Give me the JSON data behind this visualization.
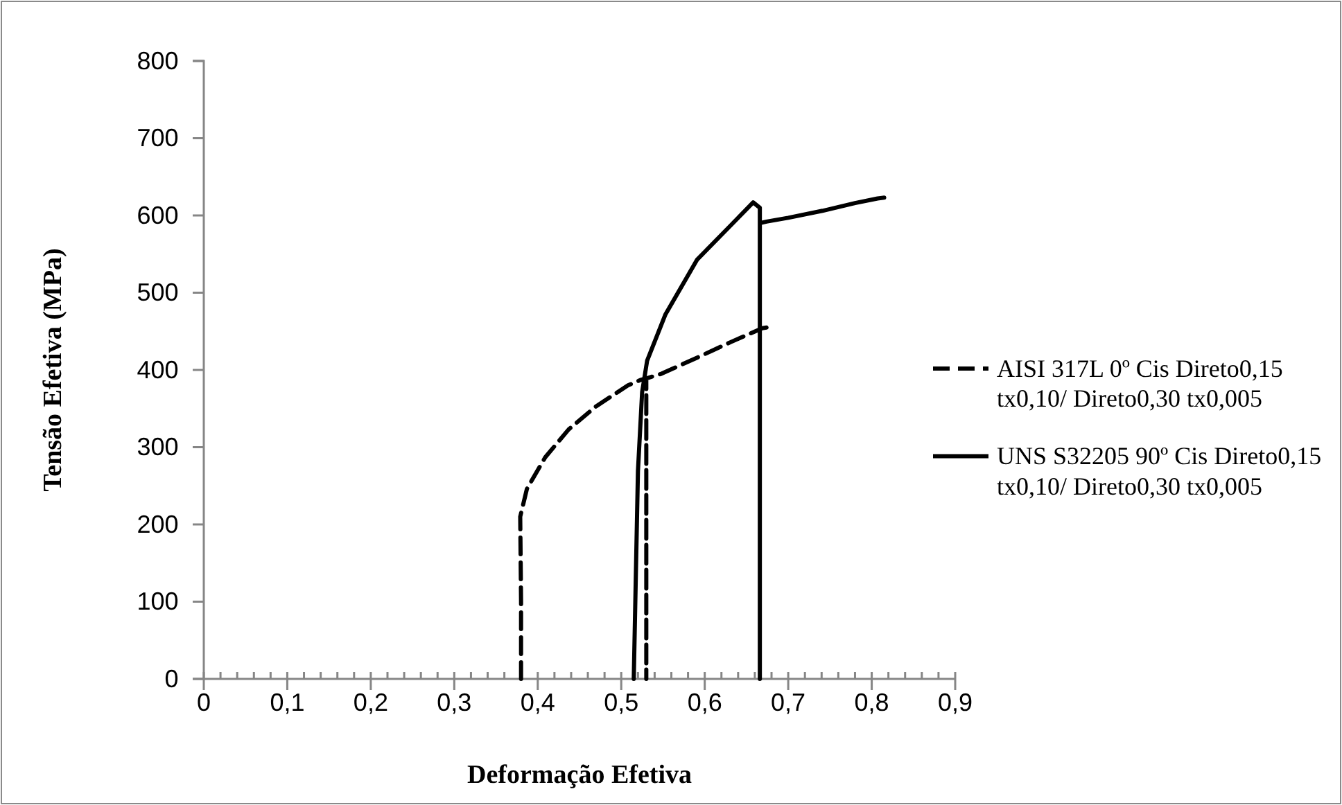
{
  "chart_data": {
    "type": "line",
    "xlabel": "Deformação Efetiva",
    "ylabel": "Tensão Efetiva (MPa)",
    "xlim": [
      0,
      0.9
    ],
    "ylim": [
      0,
      800
    ],
    "xticks": [
      {
        "value": 0,
        "label": "0"
      },
      {
        "value": 0.02,
        "label": null
      },
      {
        "value": 0.04,
        "label": null
      },
      {
        "value": 0.06,
        "label": null
      },
      {
        "value": 0.08,
        "label": null
      },
      {
        "value": 0.1,
        "label": "0,1"
      },
      {
        "value": 0.12,
        "label": null
      },
      {
        "value": 0.14,
        "label": null
      },
      {
        "value": 0.16,
        "label": null
      },
      {
        "value": 0.18,
        "label": null
      },
      {
        "value": 0.2,
        "label": "0,2"
      },
      {
        "value": 0.22,
        "label": null
      },
      {
        "value": 0.24,
        "label": null
      },
      {
        "value": 0.26,
        "label": null
      },
      {
        "value": 0.28,
        "label": null
      },
      {
        "value": 0.3,
        "label": "0,3"
      },
      {
        "value": 0.32,
        "label": null
      },
      {
        "value": 0.34,
        "label": null
      },
      {
        "value": 0.36,
        "label": null
      },
      {
        "value": 0.38,
        "label": null
      },
      {
        "value": 0.4,
        "label": "0,4"
      },
      {
        "value": 0.42,
        "label": null
      },
      {
        "value": 0.44,
        "label": null
      },
      {
        "value": 0.46,
        "label": null
      },
      {
        "value": 0.48,
        "label": null
      },
      {
        "value": 0.5,
        "label": "0,5"
      },
      {
        "value": 0.52,
        "label": null
      },
      {
        "value": 0.54,
        "label": null
      },
      {
        "value": 0.56,
        "label": null
      },
      {
        "value": 0.58,
        "label": null
      },
      {
        "value": 0.6,
        "label": "0,6"
      },
      {
        "value": 0.62,
        "label": null
      },
      {
        "value": 0.64,
        "label": null
      },
      {
        "value": 0.66,
        "label": null
      },
      {
        "value": 0.68,
        "label": null
      },
      {
        "value": 0.7,
        "label": "0,7"
      },
      {
        "value": 0.72,
        "label": null
      },
      {
        "value": 0.74,
        "label": null
      },
      {
        "value": 0.76,
        "label": null
      },
      {
        "value": 0.78,
        "label": null
      },
      {
        "value": 0.8,
        "label": "0,8"
      },
      {
        "value": 0.82,
        "label": null
      },
      {
        "value": 0.84,
        "label": null
      },
      {
        "value": 0.86,
        "label": null
      },
      {
        "value": 0.88,
        "label": null
      },
      {
        "value": 0.9,
        "label": "0,9"
      }
    ],
    "yticks": [
      0,
      100,
      200,
      300,
      400,
      500,
      600,
      700,
      800
    ],
    "grid": false,
    "legend": "right",
    "marker": "none",
    "series": [
      {
        "name": "AISI 317L 0º Cis Direto0,15 tx0,10/ Direto0,30 tx0,005",
        "color": "#000000",
        "line_style": "dashed",
        "x": [
          0.38,
          0.38,
          0.379,
          0.387,
          0.409,
          0.437,
          0.47,
          0.508,
          0.523,
          0.53,
          0.53,
          0.53,
          0.548,
          0.591,
          0.631,
          0.669,
          0.68
        ],
        "values": [
          0,
          100,
          210,
          246,
          287,
          323,
          353,
          380,
          387,
          389,
          0,
          389,
          395,
          416,
          436,
          454,
          456
        ]
      },
      {
        "name": "UNS S32205 90º Cis Direto0,15 tx0,10/ Direto0,30 tx0,005",
        "color": "#000000",
        "line_style": "solid",
        "x": [
          0.515,
          0.52,
          0.525,
          0.531,
          0.553,
          0.591,
          0.631,
          0.658,
          0.666,
          0.666,
          0.666,
          0.674,
          0.7,
          0.741,
          0.78,
          0.807,
          0.815
        ],
        "values": [
          0,
          269,
          371,
          412,
          472,
          543,
          587,
          617,
          610,
          0,
          590,
          592,
          597,
          606,
          616,
          622,
          623
        ]
      }
    ]
  }
}
